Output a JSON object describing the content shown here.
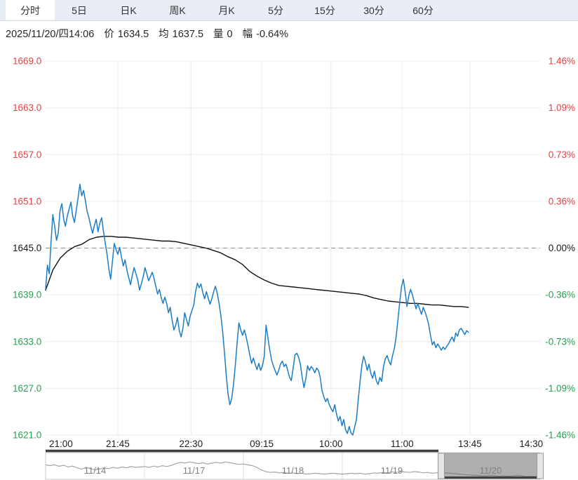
{
  "tabbar": {
    "tabs": [
      {
        "label": "分时",
        "active": true
      },
      {
        "label": "5日",
        "active": false
      },
      {
        "label": "日K",
        "active": false
      },
      {
        "label": "周K",
        "active": false
      },
      {
        "label": "月K",
        "active": false
      },
      {
        "label": "5分",
        "active": false
      },
      {
        "label": "15分",
        "active": false
      },
      {
        "label": "30分",
        "active": false
      },
      {
        "label": "60分",
        "active": false
      }
    ]
  },
  "infobar": {
    "datetime": "2025/11/20/四14:06",
    "price_label": "价",
    "price": "1634.5",
    "avg_label": "均",
    "avg": "1637.5",
    "vol_label": "量",
    "vol": "0",
    "chg_label": "幅",
    "chg": "-0.64%"
  },
  "chart_data": {
    "type": "line",
    "title": "Intraday time-share chart (分时)",
    "ylim": [
      1621.0,
      1669.0
    ],
    "zero_value": 1645.0,
    "yticks_left": [
      "1669.0",
      "1663.0",
      "1657.0",
      "1651.0",
      "1645.0",
      "1639.0",
      "1633.0",
      "1627.0",
      "1621.0"
    ],
    "yticks_right": [
      "1.46%",
      "1.09%",
      "0.73%",
      "0.36%",
      "0.00%",
      "-0.36%",
      "-0.73%",
      "-1.09%",
      "-1.46%"
    ],
    "xticks": [
      {
        "label": "21:00",
        "pos": 0.031,
        "grid": false
      },
      {
        "label": "21:45",
        "pos": 0.146,
        "grid": true
      },
      {
        "label": "22:30",
        "pos": 0.294,
        "grid": true
      },
      {
        "label": "09:15",
        "pos": 0.437,
        "grid": true
      },
      {
        "label": "10:00",
        "pos": 0.577,
        "grid": true
      },
      {
        "label": "11:00",
        "pos": 0.721,
        "grid": true
      },
      {
        "label": "13:45",
        "pos": 0.858,
        "grid": true
      },
      {
        "label": "14:30",
        "pos": 0.982,
        "grid": false
      }
    ],
    "x_end_fraction": 0.855,
    "colors": {
      "up": "#e24444",
      "down": "#28a152",
      "flat": "#1a1a1a",
      "price_line": "#1d7dc4",
      "avg_line": "#111111",
      "grid": "#ececec",
      "zero_dash": "#909090",
      "nav_line": "#a6a6a6",
      "nav_label": "#7f7f7f",
      "nav_border": "#c8c8c8",
      "nav_overlay": "rgba(95,95,95,0.5)",
      "divider": "#3f3f3f"
    },
    "series": [
      {
        "name": "price",
        "values": [
          1639.7,
          1642.8,
          1641.7,
          1645.7,
          1649.3,
          1647.8,
          1646.0,
          1646.9,
          1649.8,
          1650.7,
          1648.7,
          1647.8,
          1649.1,
          1650.0,
          1650.9,
          1649.1,
          1648.3,
          1649.9,
          1651.5,
          1653.2,
          1651.7,
          1652.4,
          1651.1,
          1649.7,
          1648.9,
          1647.8,
          1646.9,
          1647.9,
          1648.7,
          1647.1,
          1648.2,
          1648.9,
          1647.2,
          1645.7,
          1644.2,
          1642.3,
          1641.0,
          1643.3,
          1645.6,
          1644.8,
          1644.2,
          1645.1,
          1643.8,
          1642.7,
          1643.5,
          1642.2,
          1641.2,
          1640.3,
          1641.5,
          1642.5,
          1641.7,
          1640.9,
          1639.6,
          1640.4,
          1641.3,
          1642.5,
          1641.7,
          1640.8,
          1641.3,
          1641.9,
          1641.1,
          1640.1,
          1639.1,
          1639.7,
          1638.6,
          1637.9,
          1638.7,
          1637.9,
          1636.7,
          1637.4,
          1635.8,
          1634.5,
          1635.1,
          1636.1,
          1634.4,
          1633.6,
          1634.7,
          1636.7,
          1635.8,
          1635.0,
          1636.3,
          1637.0,
          1637.7,
          1639.4,
          1640.5,
          1639.9,
          1640.4,
          1639.3,
          1638.5,
          1639.4,
          1638.6,
          1637.8,
          1638.5,
          1639.4,
          1640.1,
          1639.2,
          1637.9,
          1636.3,
          1634.3,
          1631.6,
          1628.6,
          1626.2,
          1624.9,
          1625.7,
          1627.5,
          1630.0,
          1632.9,
          1635.4,
          1634.5,
          1633.8,
          1634.5,
          1633.6,
          1632.5,
          1631.3,
          1630.2,
          1630.9,
          1630.1,
          1629.4,
          1630.2,
          1629.3,
          1629.9,
          1631.1,
          1635.1,
          1633.6,
          1632.0,
          1630.7,
          1629.9,
          1629.3,
          1628.7,
          1629.3,
          1630.1,
          1630.5,
          1629.8,
          1630.1,
          1629.3,
          1628.4,
          1628.0,
          1629.6,
          1631.3,
          1631.5,
          1631.0,
          1630.1,
          1628.4,
          1627.1,
          1628.2,
          1629.9,
          1629.3,
          1629.8,
          1629.5,
          1629.0,
          1629.6,
          1629.3,
          1628.4,
          1626.7,
          1625.9,
          1625.3,
          1625.7,
          1624.9,
          1624.4,
          1624.0,
          1624.9,
          1623.7,
          1622.8,
          1623.4,
          1622.2,
          1623.0,
          1621.7,
          1621.2,
          1622.1,
          1621.3,
          1621.0,
          1622.0,
          1623.0,
          1625.4,
          1627.8,
          1629.9,
          1631.1,
          1630.4,
          1629.3,
          1630.1,
          1628.9,
          1628.3,
          1629.2,
          1628.0,
          1627.5,
          1628.4,
          1627.9,
          1629.8,
          1630.8,
          1631.2,
          1630.5,
          1630.0,
          1631.2,
          1632.1,
          1633.6,
          1635.8,
          1638.1,
          1640.1,
          1641.0,
          1639.4,
          1637.5,
          1638.9,
          1639.7,
          1639.0,
          1638.1,
          1637.2,
          1637.9,
          1637.2,
          1636.5,
          1637.4,
          1636.8,
          1636.1,
          1635.2,
          1633.8,
          1632.6,
          1633.0,
          1632.2,
          1632.7,
          1632.3,
          1631.9,
          1632.3,
          1632.0,
          1632.4,
          1632.7,
          1633.2,
          1633.6,
          1633.0,
          1634.1,
          1633.7,
          1634.5,
          1634.7,
          1634.3,
          1633.9,
          1634.4,
          1634.2
        ]
      },
      {
        "name": "average",
        "values": [
          1639.6,
          1642.2,
          1643.7,
          1644.6,
          1645.2,
          1645.5,
          1646.1,
          1646.4,
          1646.5,
          1646.5,
          1646.4,
          1646.4,
          1646.3,
          1646.2,
          1646.1,
          1646.0,
          1645.9,
          1645.9,
          1645.8,
          1645.6,
          1645.4,
          1645.2,
          1645.0,
          1644.7,
          1644.4,
          1643.9,
          1643.5,
          1642.9,
          1642.0,
          1641.4,
          1640.9,
          1640.5,
          1640.2,
          1640.1,
          1640.0,
          1639.9,
          1639.8,
          1639.7,
          1639.6,
          1639.5,
          1639.4,
          1639.3,
          1639.2,
          1639.1,
          1638.9,
          1638.6,
          1638.4,
          1638.2,
          1638.1,
          1638.0,
          1637.9,
          1637.9,
          1637.8,
          1637.7,
          1637.7,
          1637.6,
          1637.5,
          1637.5,
          1637.4
        ]
      }
    ],
    "navigator": {
      "days": [
        "11/14",
        "11/17",
        "11/18",
        "11/19",
        "11/20"
      ],
      "selected_day_index": 4,
      "levels": [
        62,
        58,
        62,
        55,
        60,
        52,
        56,
        48,
        42,
        50,
        44,
        38,
        42,
        48,
        44,
        50,
        46,
        52,
        48,
        54,
        50,
        52,
        54,
        50,
        56,
        52,
        58,
        54,
        60,
        68,
        74,
        70,
        76,
        72,
        68,
        72,
        66,
        70,
        74,
        70,
        76,
        72,
        68,
        64,
        66,
        62,
        58,
        50,
        38,
        30,
        26,
        28,
        24,
        26,
        22,
        24,
        20,
        22,
        18,
        20,
        22,
        20,
        18,
        20,
        22,
        20,
        18,
        20,
        22,
        20,
        22,
        18,
        20,
        24,
        22,
        26,
        24,
        28,
        26,
        30,
        28,
        26,
        30,
        28,
        24,
        26,
        22,
        24,
        26,
        24,
        22,
        20,
        18,
        16,
        14,
        12,
        12,
        10,
        10,
        12,
        10,
        8,
        10,
        8,
        10,
        12,
        10,
        6,
        8,
        6,
        6
      ]
    }
  }
}
